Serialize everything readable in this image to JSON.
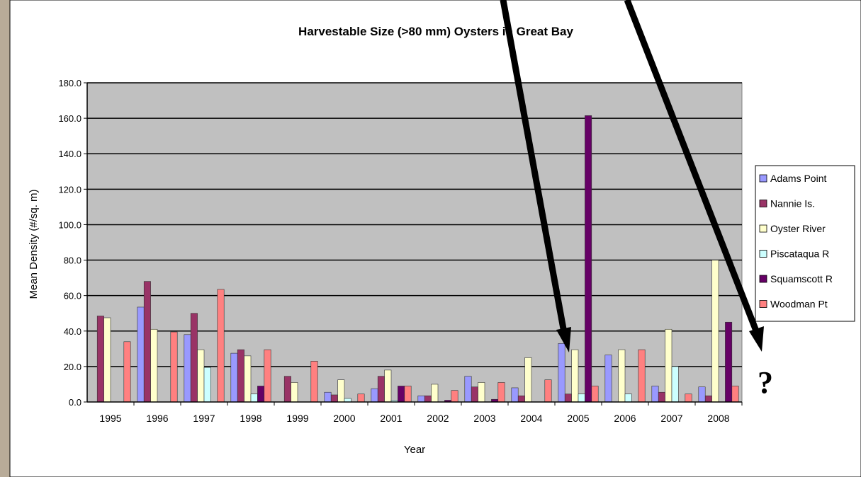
{
  "colors": {
    "plot_bg": "#c0c0c0",
    "gridline": "#000000",
    "series": [
      "#9999ff",
      "#993366",
      "#ffffcc",
      "#ccffff",
      "#660066",
      "#ff8080"
    ],
    "arrow": "#000000"
  },
  "annotation": {
    "question_mark": "?"
  },
  "chart_data": {
    "type": "bar",
    "title": "Harvestable Size (>80 mm) Oysters in Great Bay",
    "xlabel": "Year",
    "ylabel": "Mean Density (#/sq. m)",
    "ylim": [
      0,
      180
    ],
    "yticks": [
      "0.0",
      "20.0",
      "40.0",
      "60.0",
      "80.0",
      "100.0",
      "120.0",
      "140.0",
      "160.0",
      "180.0"
    ],
    "grid": true,
    "legend_position": "right",
    "categories": [
      "1995",
      "1996",
      "1997",
      "1998",
      "1999",
      "2000",
      "2001",
      "2002",
      "2003",
      "2004",
      "2005",
      "2006",
      "2007",
      "2008"
    ],
    "series": [
      {
        "name": "Adams Point",
        "values": [
          0,
          53.5,
          38,
          27.5,
          0,
          5.5,
          7.5,
          3.5,
          14.5,
          8,
          33,
          26.5,
          9,
          8.5
        ]
      },
      {
        "name": "Nannie Is.",
        "values": [
          48.5,
          68,
          50,
          29.5,
          14.5,
          4,
          14.5,
          3.5,
          8.5,
          3.5,
          4.5,
          0,
          5.5,
          3.5
        ]
      },
      {
        "name": "Oyster River",
        "values": [
          47.5,
          41,
          29.5,
          26,
          11,
          12.5,
          18,
          10,
          11,
          25,
          29.5,
          29.5,
          41,
          80
        ]
      },
      {
        "name": "Piscataqua R",
        "values": [
          0,
          0,
          19.5,
          4.5,
          0,
          2,
          1,
          0,
          0,
          0,
          4.5,
          4.5,
          20,
          0
        ]
      },
      {
        "name": "Squamscott R",
        "values": [
          0,
          0,
          0,
          9,
          0,
          0,
          9,
          1,
          1.5,
          0,
          161.5,
          0,
          0,
          45
        ]
      },
      {
        "name": "Woodman Pt",
        "values": [
          34,
          39.5,
          63.5,
          29.5,
          23,
          4.5,
          9,
          6.5,
          11,
          12.5,
          9,
          29.5,
          4.5,
          9
        ]
      }
    ]
  }
}
